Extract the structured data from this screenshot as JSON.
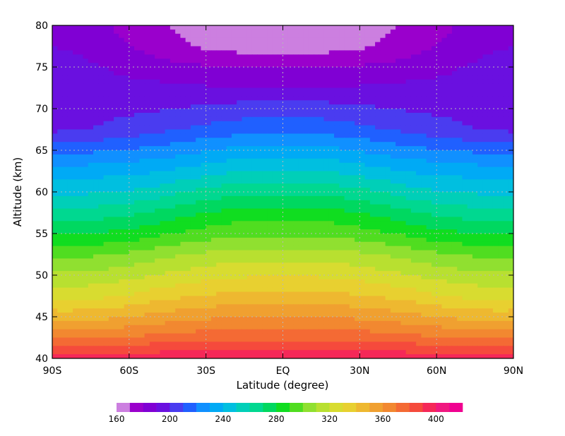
{
  "chart_data": {
    "type": "heatmap",
    "title": "",
    "xlabel": "Latitude (degree)",
    "ylabel": "Altitude (km)",
    "xlim": [
      -90,
      90
    ],
    "ylim": [
      40,
      80
    ],
    "x_ticks": [
      {
        "value": -90,
        "label": "90S"
      },
      {
        "value": -60,
        "label": "60S"
      },
      {
        "value": -30,
        "label": "30S"
      },
      {
        "value": 0,
        "label": "EQ"
      },
      {
        "value": 30,
        "label": "30N"
      },
      {
        "value": 60,
        "label": "60N"
      },
      {
        "value": 90,
        "label": "90N"
      }
    ],
    "y_ticks": [
      40,
      45,
      50,
      55,
      60,
      65,
      70,
      75,
      80
    ],
    "grid": "dotted",
    "colorbar": {
      "levels": [
        160,
        170,
        180,
        190,
        200,
        210,
        220,
        230,
        240,
        250,
        260,
        270,
        280,
        290,
        300,
        310,
        320,
        330,
        340,
        350,
        360,
        370,
        380,
        390,
        400,
        410
      ],
      "colors": [
        "#cc7fe0",
        "#9a00cc",
        "#8000d4",
        "#6a10e0",
        "#4a3cf0",
        "#2060ff",
        "#1090ff",
        "#00aaf5",
        "#00bfe0",
        "#00cfb8",
        "#00d890",
        "#00d860",
        "#10dd20",
        "#50dd20",
        "#90e030",
        "#b8e030",
        "#d8dc30",
        "#e8d030",
        "#eeb830",
        "#f0a030",
        "#f28830",
        "#f46a34",
        "#f54a3c",
        "#f52858",
        "#f01880",
        "#f00090"
      ],
      "tick_labels": [
        160,
        200,
        240,
        280,
        320,
        360,
        400
      ]
    },
    "latitudes": [
      -90,
      -80,
      -70,
      -60,
      -50,
      -40,
      -30,
      -20,
      -10,
      0,
      10,
      20,
      30,
      40,
      50,
      60,
      70,
      80,
      90
    ],
    "altitudes": [
      40,
      42.5,
      45,
      47.5,
      50,
      52.5,
      55,
      57.5,
      60,
      62.5,
      65,
      67.5,
      70,
      72.5,
      75,
      77.5,
      80
    ],
    "temperature": [
      [
        396,
        396,
        396,
        397,
        397,
        398,
        398,
        398,
        398,
        398,
        398,
        398,
        398,
        398,
        397,
        397,
        396,
        396,
        396
      ],
      [
        368,
        368,
        369,
        371,
        373,
        375,
        376,
        377,
        377,
        377,
        377,
        377,
        376,
        375,
        373,
        371,
        369,
        368,
        368
      ],
      [
        346,
        346,
        347,
        350,
        353,
        356,
        358,
        359,
        360,
        360,
        360,
        359,
        358,
        356,
        353,
        350,
        347,
        346,
        346
      ],
      [
        326,
        326,
        328,
        331,
        335,
        338,
        341,
        342,
        343,
        343,
        343,
        342,
        341,
        338,
        335,
        331,
        328,
        326,
        326
      ],
      [
        312,
        312,
        314,
        317,
        320,
        323,
        326,
        328,
        329,
        329,
        329,
        328,
        326,
        323,
        320,
        317,
        314,
        312,
        312
      ],
      [
        298,
        298,
        299,
        302,
        306,
        309,
        312,
        314,
        315,
        315,
        315,
        314,
        312,
        309,
        306,
        302,
        299,
        298,
        298
      ],
      [
        280,
        280,
        281,
        283,
        287,
        291,
        294,
        297,
        298,
        298,
        298,
        297,
        294,
        291,
        287,
        283,
        281,
        280,
        280
      ],
      [
        263,
        263,
        265,
        268,
        272,
        276,
        280,
        283,
        285,
        285,
        285,
        283,
        280,
        276,
        272,
        268,
        265,
        263,
        263
      ],
      [
        248,
        248,
        249,
        251,
        254,
        259,
        263,
        266,
        268,
        268,
        268,
        266,
        263,
        259,
        254,
        251,
        249,
        248,
        248
      ],
      [
        235,
        235,
        236,
        237,
        239,
        242,
        246,
        249,
        251,
        251,
        251,
        249,
        246,
        242,
        239,
        237,
        236,
        235,
        235
      ],
      [
        215,
        217,
        219,
        221,
        223,
        226,
        229,
        232,
        234,
        234,
        234,
        232,
        229,
        226,
        223,
        221,
        219,
        217,
        215
      ],
      [
        198,
        199,
        201,
        204,
        207,
        210,
        213,
        215,
        217,
        217,
        217,
        215,
        213,
        210,
        207,
        204,
        201,
        199,
        198
      ],
      [
        196,
        196,
        197,
        198,
        199,
        200,
        202,
        204,
        205,
        205,
        205,
        204,
        202,
        200,
        199,
        198,
        197,
        196,
        196
      ],
      [
        196,
        196,
        195,
        194,
        193,
        192,
        191,
        190,
        190,
        190,
        190,
        190,
        191,
        192,
        193,
        194,
        195,
        196,
        196
      ],
      [
        194,
        193,
        190,
        186,
        184,
        182,
        181,
        180,
        180,
        180,
        180,
        180,
        181,
        182,
        184,
        186,
        190,
        193,
        194
      ],
      [
        190,
        188,
        184,
        180,
        176,
        172,
        168,
        166,
        165,
        165,
        165,
        166,
        168,
        172,
        176,
        180,
        184,
        188,
        190
      ],
      [
        190,
        188,
        182,
        176,
        172,
        168,
        164,
        163,
        162,
        162,
        162,
        163,
        164,
        168,
        172,
        176,
        182,
        188,
        190
      ]
    ]
  }
}
